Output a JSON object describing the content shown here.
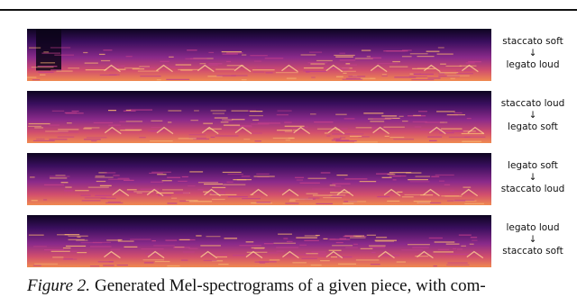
{
  "figure": {
    "panels": [
      {
        "from": "staccato soft",
        "arrow": "↓",
        "to": "legato loud"
      },
      {
        "from": "staccato loud",
        "arrow": "↓",
        "to": "legato soft"
      },
      {
        "from": "legato soft",
        "arrow": "↓",
        "to": "staccato loud"
      },
      {
        "from": "legato loud",
        "arrow": "↓",
        "to": "staccato soft"
      }
    ],
    "caption": {
      "label": "Figure 2.",
      "text": "Generated Mel-spectrograms of a given piece, with com-"
    }
  }
}
